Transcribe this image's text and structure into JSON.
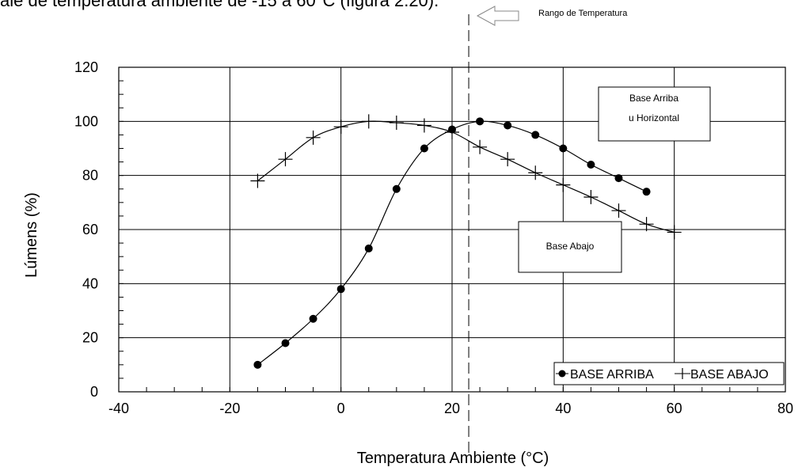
{
  "header_text": "ale de temperatura ambiente de -15 a 60°C (figura 2.20).",
  "chart_data": {
    "type": "line",
    "title": "",
    "xlabel": "Temperatura Ambiente (°C)",
    "ylabel": "Lúmens (%)",
    "xlim": [
      -40,
      80
    ],
    "ylim": [
      0,
      120
    ],
    "x_ticks": [
      -40,
      -20,
      0,
      20,
      40,
      60,
      80
    ],
    "y_ticks": [
      0,
      20,
      40,
      60,
      80,
      100,
      120
    ],
    "x_tick_labels": [
      "-40",
      "-20",
      "0",
      "20",
      "40",
      "60",
      "80"
    ],
    "y_tick_labels": [
      "0",
      "20",
      "40",
      "60",
      "80",
      "100",
      "120"
    ],
    "grid": true,
    "series": [
      {
        "name": "BASE ARRIBA",
        "marker": "filled-circle",
        "color": "#000000",
        "points": [
          {
            "x": -15,
            "y": 10
          },
          {
            "x": -10,
            "y": 18
          },
          {
            "x": -5,
            "y": 27
          },
          {
            "x": 0,
            "y": 38
          },
          {
            "x": 5,
            "y": 53
          },
          {
            "x": 10,
            "y": 75
          },
          {
            "x": 15,
            "y": 90
          },
          {
            "x": 20,
            "y": 97
          },
          {
            "x": 25,
            "y": 100
          },
          {
            "x": 30,
            "y": 98.5
          },
          {
            "x": 35,
            "y": 95
          },
          {
            "x": 40,
            "y": 90
          },
          {
            "x": 45,
            "y": 84
          },
          {
            "x": 50,
            "y": 79
          },
          {
            "x": 55,
            "y": 74
          }
        ]
      },
      {
        "name": "BASE ABAJO",
        "marker": "plus",
        "color": "#000000",
        "points": [
          {
            "x": -15,
            "y": 78
          },
          {
            "x": -10,
            "y": 86
          },
          {
            "x": -5,
            "y": 94
          },
          {
            "x": 0,
            "y": 98
          },
          {
            "x": 5,
            "y": 100
          },
          {
            "x": 10,
            "y": 99.5
          },
          {
            "x": 15,
            "y": 98.5
          },
          {
            "x": 20,
            "y": 96
          },
          {
            "x": 25,
            "y": 90.5
          },
          {
            "x": 30,
            "y": 86
          },
          {
            "x": 35,
            "y": 81
          },
          {
            "x": 40,
            "y": 76.5
          },
          {
            "x": 45,
            "y": 72
          },
          {
            "x": 50,
            "y": 67
          },
          {
            "x": 55,
            "y": 62
          },
          {
            "x": 60,
            "y": 59
          }
        ]
      }
    ],
    "reference_line": {
      "x": 23,
      "style": "dashed"
    },
    "annotations": {
      "range_label": "Rango de Temperatura",
      "box_top_line1": "Base Arriba",
      "box_top_line2": "u Horizontal",
      "box_bottom": "Base Abajo"
    },
    "legend_position": "bottom-right"
  }
}
